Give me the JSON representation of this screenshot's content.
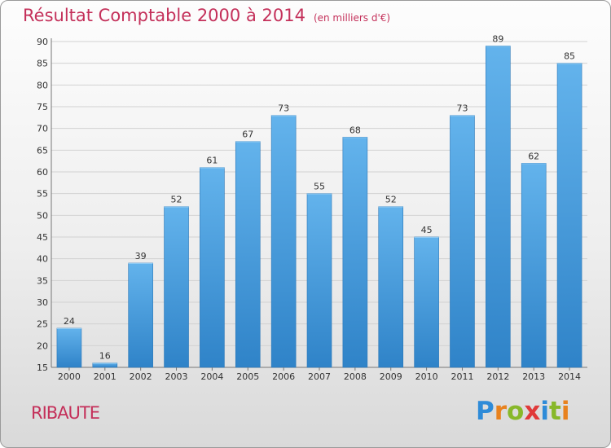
{
  "header": {
    "title": "Résultat Comptable 2000 à 2014",
    "subtitle": "(en milliers d'€)"
  },
  "commune": "RIBAUTE",
  "logo": {
    "letters": [
      "P",
      "r",
      "o",
      "x",
      "i",
      "t",
      "i"
    ],
    "colors": [
      "#2e8bd8",
      "#e8821e",
      "#88b82a",
      "#e03a3a",
      "#2e8bd8",
      "#88b82a",
      "#e8821e"
    ]
  },
  "colors": {
    "bar_top": "#63b3ec",
    "bar_bottom": "#2f83c8",
    "text": "#c4305a",
    "grid": "#d2d2d2"
  },
  "chart_data": {
    "type": "bar",
    "categories": [
      "2000",
      "2001",
      "2002",
      "2003",
      "2004",
      "2005",
      "2006",
      "2007",
      "2008",
      "2009",
      "2010",
      "2011",
      "2012",
      "2013",
      "2014"
    ],
    "values": [
      24,
      16,
      39,
      52,
      61,
      67,
      73,
      55,
      68,
      52,
      45,
      73,
      89,
      62,
      85
    ],
    "ylim": [
      15,
      90
    ],
    "yticks": [
      15,
      20,
      25,
      30,
      35,
      40,
      45,
      50,
      55,
      60,
      65,
      70,
      75,
      80,
      85,
      90
    ],
    "grid": true
  }
}
